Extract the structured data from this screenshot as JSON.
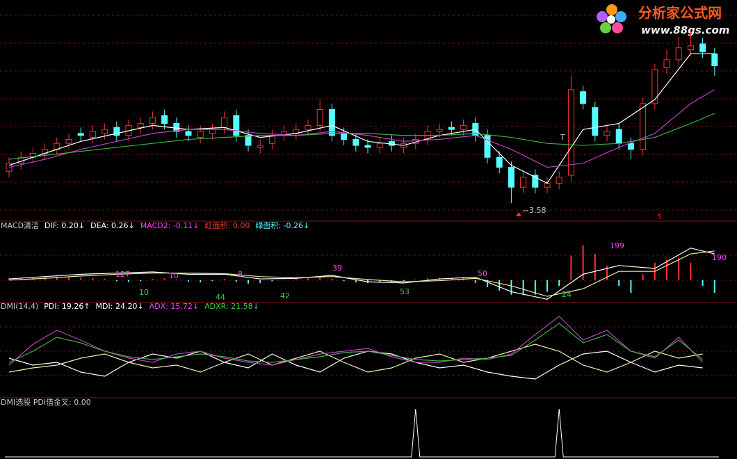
{
  "logo": {
    "title": "分析家公式网",
    "url": "www.88gs.com"
  },
  "price_panel": {
    "ylim": [
      3.5,
      4.6
    ],
    "open": [
      3.74,
      3.78,
      3.81,
      3.83,
      3.85,
      3.88,
      3.93,
      3.91,
      3.93,
      3.96,
      3.92,
      3.96,
      3.98,
      4.02,
      3.98,
      3.94,
      3.91,
      3.93,
      3.96,
      4.02,
      3.92,
      3.86,
      3.88,
      3.92,
      3.93,
      3.95,
      3.97,
      4.05,
      3.93,
      3.9,
      3.87,
      3.86,
      3.89,
      3.86,
      3.88,
      3.9,
      3.94,
      3.96,
      3.95,
      3.98,
      3.92,
      3.81,
      3.76,
      3.66,
      3.72,
      3.66,
      3.68,
      3.72,
      4.14,
      4.06,
      3.92,
      3.95,
      3.88,
      3.85,
      4.08,
      4.26,
      4.3,
      4.35,
      4.38,
      4.33
    ],
    "close": [
      3.78,
      3.81,
      3.83,
      3.85,
      3.88,
      3.9,
      3.92,
      3.94,
      3.95,
      3.92,
      3.97,
      3.98,
      4.01,
      3.98,
      3.94,
      3.92,
      3.94,
      3.95,
      4.01,
      3.92,
      3.87,
      3.87,
      3.92,
      3.94,
      3.95,
      3.97,
      4.05,
      3.92,
      3.9,
      3.87,
      3.86,
      3.88,
      3.87,
      3.88,
      3.9,
      3.94,
      3.95,
      3.95,
      3.97,
      3.92,
      3.81,
      3.76,
      3.66,
      3.71,
      3.66,
      3.68,
      3.71,
      4.15,
      4.08,
      3.92,
      3.94,
      3.88,
      3.85,
      4.08,
      4.25,
      4.3,
      4.36,
      4.37,
      4.34,
      4.27
    ],
    "high": [
      3.81,
      3.84,
      3.86,
      3.88,
      3.91,
      3.93,
      3.96,
      3.97,
      3.98,
      3.99,
      4.0,
      4.01,
      4.04,
      4.05,
      4.01,
      3.97,
      3.97,
      3.98,
      4.04,
      4.05,
      3.95,
      3.9,
      3.95,
      3.97,
      3.98,
      4.0,
      4.1,
      4.08,
      3.96,
      3.93,
      3.9,
      3.91,
      3.92,
      3.91,
      3.93,
      3.97,
      3.98,
      3.99,
      4.0,
      4.01,
      3.95,
      3.84,
      3.79,
      3.74,
      3.75,
      3.71,
      3.74,
      4.22,
      4.17,
      4.09,
      3.97,
      3.98,
      3.91,
      4.11,
      4.28,
      4.35,
      4.42,
      4.45,
      4.41,
      4.36
    ],
    "low": [
      3.71,
      3.75,
      3.78,
      3.8,
      3.82,
      3.85,
      3.89,
      3.88,
      3.9,
      3.89,
      3.89,
      3.93,
      3.95,
      3.95,
      3.91,
      3.89,
      3.88,
      3.9,
      3.93,
      3.89,
      3.84,
      3.83,
      3.85,
      3.89,
      3.9,
      3.92,
      3.94,
      3.89,
      3.87,
      3.84,
      3.83,
      3.83,
      3.84,
      3.83,
      3.85,
      3.87,
      3.91,
      3.92,
      3.92,
      3.89,
      3.78,
      3.73,
      3.58,
      3.63,
      3.63,
      3.63,
      3.65,
      3.69,
      4.05,
      3.89,
      3.89,
      3.85,
      3.8,
      3.82,
      4.05,
      4.23,
      4.27,
      4.32,
      4.31,
      4.22
    ],
    "ma_x": [
      0,
      3,
      6,
      9,
      12,
      15,
      18,
      21,
      24,
      27,
      30,
      33,
      36,
      39,
      42,
      45,
      48,
      51,
      54,
      57,
      59
    ],
    "ma": [
      {
        "color": "#ffffff",
        "values": [
          3.77,
          3.83,
          3.89,
          3.93,
          3.97,
          3.95,
          3.96,
          3.91,
          3.93,
          3.97,
          3.89,
          3.87,
          3.92,
          3.95,
          3.77,
          3.68,
          3.95,
          3.98,
          4.1,
          4.33,
          4.33
        ]
      },
      {
        "color": "#c040c0",
        "values": [
          3.76,
          3.8,
          3.85,
          3.89,
          3.93,
          3.95,
          3.95,
          3.93,
          3.92,
          3.94,
          3.92,
          3.89,
          3.9,
          3.92,
          3.85,
          3.76,
          3.78,
          3.86,
          3.93,
          4.08,
          4.15
        ]
      },
      {
        "color": "#40b040",
        "values": [
          3.8,
          3.82,
          3.84,
          3.86,
          3.88,
          3.9,
          3.91,
          3.92,
          3.92,
          3.93,
          3.93,
          3.92,
          3.92,
          3.93,
          3.91,
          3.88,
          3.87,
          3.88,
          3.91,
          3.98,
          4.03
        ]
      }
    ],
    "low_label": 3.58,
    "marker_t": "T",
    "marker_5": "5"
  },
  "macd_panel": {
    "header": [
      {
        "text": "MACD清洁",
        "color": "#c8c8c8"
      },
      {
        "text": "DIF: 0.20↓",
        "color": "#ffffff"
      },
      {
        "text": "DEA: 0.26↓",
        "color": "#ffffff"
      },
      {
        "text": "MACD2: -0.11↓",
        "color": "#ff40ff"
      },
      {
        "text": "红面积: 0.00",
        "color": "#ff3232"
      },
      {
        "text": "绿面积: -0.26↓",
        "color": "#54ffff"
      }
    ],
    "ylim": [
      -0.35,
      0.75
    ],
    "hist": [
      0.03,
      0.04,
      0.05,
      0.05,
      0.06,
      0.05,
      0.04,
      0.03,
      0.02,
      -0.02,
      -0.03,
      -0.02,
      0.02,
      0.03,
      0.01,
      -0.03,
      -0.04,
      -0.02,
      0.02,
      -0.03,
      -0.06,
      -0.05,
      -0.02,
      0.01,
      0.02,
      0.03,
      0.06,
      0.02,
      -0.02,
      -0.04,
      -0.05,
      -0.04,
      -0.03,
      -0.02,
      0.01,
      0.03,
      0.04,
      0.04,
      0.05,
      -0.05,
      -0.12,
      -0.18,
      -0.25,
      -0.26,
      -0.25,
      -0.2,
      -0.1,
      0.42,
      0.6,
      0.45,
      0.25,
      -0.1,
      -0.22,
      0.1,
      0.3,
      0.35,
      0.38,
      0.3,
      -0.1,
      -0.22
    ],
    "dif": [
      0.02,
      0.06,
      0.1,
      0.12,
      0.14,
      0.1,
      0.1,
      0.02,
      0.03,
      0.08,
      -0.03,
      -0.05,
      0.02,
      0.05,
      -0.2,
      -0.33,
      0.1,
      0.25,
      0.2,
      0.55,
      0.45
    ],
    "dea": [
      0.0,
      0.03,
      0.07,
      0.1,
      0.12,
      0.12,
      0.11,
      0.06,
      0.04,
      0.06,
      0.01,
      -0.03,
      -0.01,
      0.03,
      -0.1,
      -0.28,
      -0.15,
      0.15,
      0.15,
      0.45,
      0.5
    ],
    "labels": [
      {
        "value": 127,
        "color": "#ff40ff"
      },
      {
        "value": 10,
        "color": "#40d040"
      },
      {
        "value": 10,
        "color": "#ff40ff"
      },
      {
        "value": 44,
        "color": "#40d040"
      },
      {
        "value": 8,
        "color": "#ff40ff"
      },
      {
        "value": 42,
        "color": "#40d040"
      },
      {
        "value": 39,
        "color": "#ff40ff"
      },
      {
        "value": 53,
        "color": "#40d040"
      },
      {
        "value": 50,
        "color": "#ff40ff"
      },
      {
        "value": 24,
        "color": "#40d040"
      },
      {
        "value": 199,
        "color": "#ff40ff"
      },
      {
        "value": 190,
        "color": "#ff40ff"
      }
    ]
  },
  "dmi_panel": {
    "header": [
      {
        "text": "DMI(14,4)",
        "color": "#c8c8c8"
      },
      {
        "text": "PDI: 19.26↑",
        "color": "#ffffff"
      },
      {
        "text": "MDI: 24.20↓",
        "color": "#ffffff"
      },
      {
        "text": "ADX: 15.72↓",
        "color": "#ff40ff"
      },
      {
        "text": "ADXR: 21.58↓",
        "color": "#40d040"
      }
    ],
    "ylim": [
      0,
      60
    ],
    "x": [
      0,
      2,
      4,
      6,
      8,
      10,
      12,
      14,
      16,
      18,
      20,
      22,
      24,
      26,
      28,
      30,
      32,
      34,
      36,
      38,
      40,
      42,
      44,
      46,
      48,
      50,
      52,
      54,
      56,
      58
    ],
    "series": [
      {
        "color": "#ffffff",
        "values": [
          25,
          20,
          22,
          15,
          12,
          22,
          28,
          25,
          30,
          22,
          18,
          28,
          20,
          15,
          25,
          30,
          28,
          22,
          18,
          20,
          15,
          12,
          10,
          20,
          28,
          30,
          22,
          15,
          20,
          18
        ]
      },
      {
        "color": "#f0f0b0",
        "values": [
          15,
          18,
          20,
          25,
          28,
          22,
          18,
          20,
          15,
          22,
          28,
          20,
          25,
          30,
          22,
          15,
          18,
          25,
          28,
          22,
          25,
          30,
          35,
          30,
          20,
          15,
          22,
          30,
          25,
          28
        ]
      },
      {
        "color": "#c040c0",
        "values": [
          20,
          35,
          45,
          38,
          30,
          25,
          22,
          28,
          30,
          25,
          22,
          20,
          24,
          28,
          30,
          32,
          26,
          22,
          22,
          25,
          24,
          28,
          42,
          55,
          38,
          45,
          30,
          25,
          40,
          22
        ]
      },
      {
        "color": "#40b040",
        "values": [
          22,
          30,
          40,
          36,
          30,
          26,
          24,
          26,
          28,
          26,
          23,
          22,
          24,
          26,
          29,
          30,
          27,
          24,
          23,
          24,
          25,
          27,
          38,
          50,
          36,
          42,
          30,
          26,
          38,
          24
        ]
      }
    ]
  },
  "signal_panel": {
    "header": "DMI选股  PDI值金叉: 0.00",
    "ylim": [
      0,
      1
    ],
    "values": [
      0,
      0,
      0,
      0,
      0,
      0,
      0,
      0,
      0,
      0,
      0,
      0,
      0,
      0,
      0,
      0,
      0,
      0,
      0,
      0,
      0,
      0,
      0,
      0,
      0,
      0,
      0,
      0,
      0,
      0,
      0,
      0,
      0,
      0,
      1,
      0,
      0,
      0,
      0,
      0,
      0,
      0,
      0,
      0,
      0,
      0,
      1,
      0,
      0,
      0,
      0,
      0,
      0,
      0,
      0,
      0,
      0,
      0,
      0,
      0
    ]
  }
}
